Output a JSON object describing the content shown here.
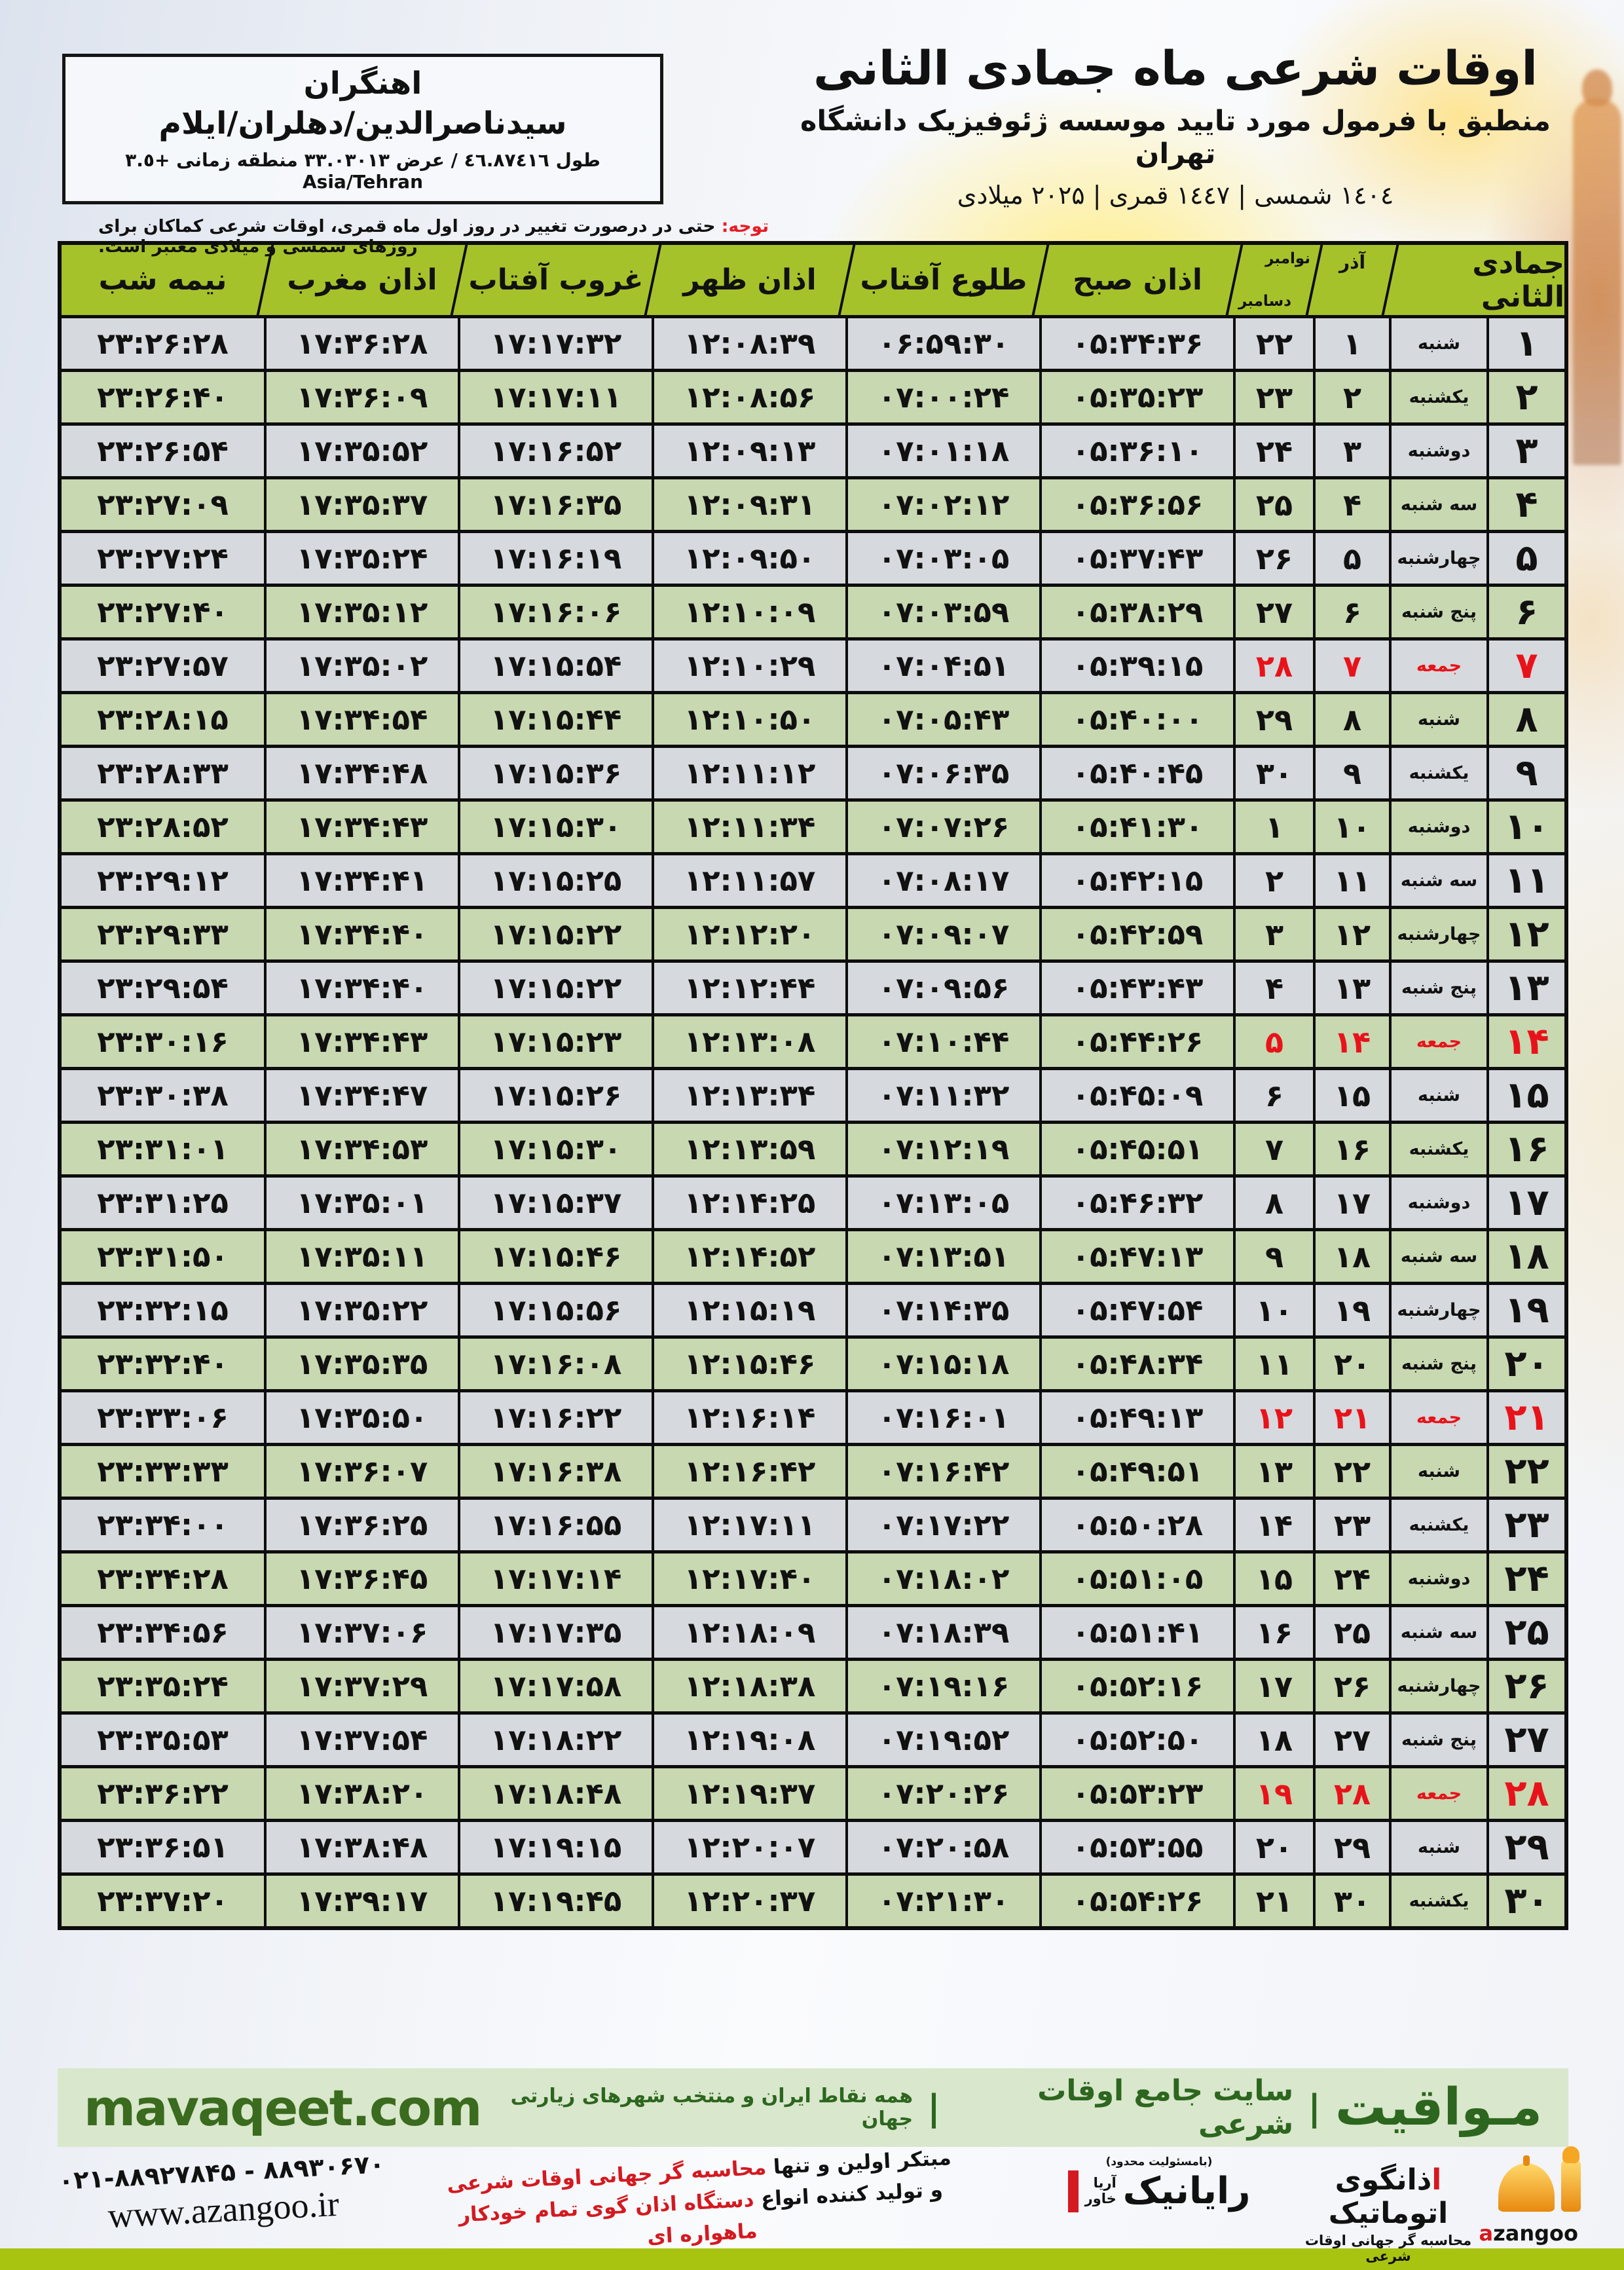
{
  "colors": {
    "accent_green": "#a6c22b",
    "row_green": "#d5e5bc",
    "friday_red": "#e8131a",
    "band_green": "#d9e7cc",
    "brand_green": "#3a6b1e",
    "lime": "#a8c411"
  },
  "location": {
    "name": "اهنگران",
    "region": "سیدناصرالدین/دهلران/ایلام",
    "coords": "طول ٤٦.٨٧٤١٦ / عرض ٣٣.٠٣٠١٣ منطقه زمانی +٣.٥ Asia/Tehran"
  },
  "title": {
    "main": "اوقات شرعی ماه جمادی الثانی",
    "sub": "منطبق با فرمول مورد تایید موسسه ژئوفیزیک دانشگاه تهران",
    "years": "١٤٠٤ شمسی | ١٤٤٧ قمری | ۲۰۲۵ میلادی"
  },
  "notice": {
    "label": "توجه:",
    "text": " حتی در درصورت تغییر در روز اول ماه قمری، اوقات شرعی کماکان برای روزهای شمسی و میلادی معتبر است."
  },
  "headers": {
    "jumada": "جمادی الثانی",
    "azar": "آذر",
    "nov": "نوامبر",
    "dec": "دسامبر",
    "fajr": "اذان صبح",
    "sunrise": "طلوع آفتاب",
    "dhuhr": "اذان ظهر",
    "sunset": "غروب آفتاب",
    "maghrib": "اذان مغرب",
    "midnight": "نیمه شب"
  },
  "rows": [
    {
      "d": 1,
      "w": "شنبه",
      "a": 1,
      "g": 22,
      "fajr": "05:34:36",
      "rise": "06:59:30",
      "noon": "12:08:39",
      "set": "17:17:32",
      "mag": "17:36:28",
      "mid": "23:26:28",
      "f": false
    },
    {
      "d": 2,
      "w": "یکشنبه",
      "a": 2,
      "g": 23,
      "fajr": "05:35:23",
      "rise": "07:00:24",
      "noon": "12:08:56",
      "set": "17:17:11",
      "mag": "17:36:09",
      "mid": "23:26:40",
      "f": false
    },
    {
      "d": 3,
      "w": "دوشنبه",
      "a": 3,
      "g": 24,
      "fajr": "05:36:10",
      "rise": "07:01:18",
      "noon": "12:09:13",
      "set": "17:16:52",
      "mag": "17:35:52",
      "mid": "23:26:54",
      "f": false
    },
    {
      "d": 4,
      "w": "سه شنبه",
      "a": 4,
      "g": 25,
      "fajr": "05:36:56",
      "rise": "07:02:12",
      "noon": "12:09:31",
      "set": "17:16:35",
      "mag": "17:35:37",
      "mid": "23:27:09",
      "f": false
    },
    {
      "d": 5,
      "w": "چهارشنبه",
      "a": 5,
      "g": 26,
      "fajr": "05:37:43",
      "rise": "07:03:05",
      "noon": "12:09:50",
      "set": "17:16:19",
      "mag": "17:35:24",
      "mid": "23:27:24",
      "f": false
    },
    {
      "d": 6,
      "w": "پنج شنبه",
      "a": 6,
      "g": 27,
      "fajr": "05:38:29",
      "rise": "07:03:59",
      "noon": "12:10:09",
      "set": "17:16:06",
      "mag": "17:35:12",
      "mid": "23:27:40",
      "f": false
    },
    {
      "d": 7,
      "w": "جمعه",
      "a": 7,
      "g": 28,
      "fajr": "05:39:15",
      "rise": "07:04:51",
      "noon": "12:10:29",
      "set": "17:15:54",
      "mag": "17:35:02",
      "mid": "23:27:57",
      "f": true
    },
    {
      "d": 8,
      "w": "شنبه",
      "a": 8,
      "g": 29,
      "fajr": "05:40:00",
      "rise": "07:05:43",
      "noon": "12:10:50",
      "set": "17:15:44",
      "mag": "17:34:54",
      "mid": "23:28:15",
      "f": false
    },
    {
      "d": 9,
      "w": "یکشنبه",
      "a": 9,
      "g": 30,
      "fajr": "05:40:45",
      "rise": "07:06:35",
      "noon": "12:11:12",
      "set": "17:15:36",
      "mag": "17:34:48",
      "mid": "23:28:33",
      "f": false
    },
    {
      "d": 10,
      "w": "دوشنبه",
      "a": 10,
      "g": 1,
      "fajr": "05:41:30",
      "rise": "07:07:26",
      "noon": "12:11:34",
      "set": "17:15:30",
      "mag": "17:34:43",
      "mid": "23:28:52",
      "f": false
    },
    {
      "d": 11,
      "w": "سه شنبه",
      "a": 11,
      "g": 2,
      "fajr": "05:42:15",
      "rise": "07:08:17",
      "noon": "12:11:57",
      "set": "17:15:25",
      "mag": "17:34:41",
      "mid": "23:29:12",
      "f": false
    },
    {
      "d": 12,
      "w": "چهارشنبه",
      "a": 12,
      "g": 3,
      "fajr": "05:42:59",
      "rise": "07:09:07",
      "noon": "12:12:20",
      "set": "17:15:22",
      "mag": "17:34:40",
      "mid": "23:29:33",
      "f": false
    },
    {
      "d": 13,
      "w": "پنج شنبه",
      "a": 13,
      "g": 4,
      "fajr": "05:43:43",
      "rise": "07:09:56",
      "noon": "12:12:44",
      "set": "17:15:22",
      "mag": "17:34:40",
      "mid": "23:29:54",
      "f": false
    },
    {
      "d": 14,
      "w": "جمعه",
      "a": 14,
      "g": 5,
      "fajr": "05:44:26",
      "rise": "07:10:44",
      "noon": "12:13:08",
      "set": "17:15:23",
      "mag": "17:34:43",
      "mid": "23:30:16",
      "f": true
    },
    {
      "d": 15,
      "w": "شنبه",
      "a": 15,
      "g": 6,
      "fajr": "05:45:09",
      "rise": "07:11:32",
      "noon": "12:13:34",
      "set": "17:15:26",
      "mag": "17:34:47",
      "mid": "23:30:38",
      "f": false
    },
    {
      "d": 16,
      "w": "یکشنبه",
      "a": 16,
      "g": 7,
      "fajr": "05:45:51",
      "rise": "07:12:19",
      "noon": "12:13:59",
      "set": "17:15:30",
      "mag": "17:34:53",
      "mid": "23:31:01",
      "f": false
    },
    {
      "d": 17,
      "w": "دوشنبه",
      "a": 17,
      "g": 8,
      "fajr": "05:46:32",
      "rise": "07:13:05",
      "noon": "12:14:25",
      "set": "17:15:37",
      "mag": "17:35:01",
      "mid": "23:31:25",
      "f": false
    },
    {
      "d": 18,
      "w": "سه شنبه",
      "a": 18,
      "g": 9,
      "fajr": "05:47:13",
      "rise": "07:13:51",
      "noon": "12:14:52",
      "set": "17:15:46",
      "mag": "17:35:11",
      "mid": "23:31:50",
      "f": false
    },
    {
      "d": 19,
      "w": "چهارشنبه",
      "a": 19,
      "g": 10,
      "fajr": "05:47:54",
      "rise": "07:14:35",
      "noon": "12:15:19",
      "set": "17:15:56",
      "mag": "17:35:22",
      "mid": "23:32:15",
      "f": false
    },
    {
      "d": 20,
      "w": "پنج شنبه",
      "a": 20,
      "g": 11,
      "fajr": "05:48:34",
      "rise": "07:15:18",
      "noon": "12:15:46",
      "set": "17:16:08",
      "mag": "17:35:35",
      "mid": "23:32:40",
      "f": false
    },
    {
      "d": 21,
      "w": "جمعه",
      "a": 21,
      "g": 12,
      "fajr": "05:49:13",
      "rise": "07:16:01",
      "noon": "12:16:14",
      "set": "17:16:22",
      "mag": "17:35:50",
      "mid": "23:33:06",
      "f": true
    },
    {
      "d": 22,
      "w": "شنبه",
      "a": 22,
      "g": 13,
      "fajr": "05:49:51",
      "rise": "07:16:42",
      "noon": "12:16:42",
      "set": "17:16:38",
      "mag": "17:36:07",
      "mid": "23:33:33",
      "f": false
    },
    {
      "d": 23,
      "w": "یکشنبه",
      "a": 23,
      "g": 14,
      "fajr": "05:50:28",
      "rise": "07:17:22",
      "noon": "12:17:11",
      "set": "17:16:55",
      "mag": "17:36:25",
      "mid": "23:34:00",
      "f": false
    },
    {
      "d": 24,
      "w": "دوشنبه",
      "a": 24,
      "g": 15,
      "fajr": "05:51:05",
      "rise": "07:18:02",
      "noon": "12:17:40",
      "set": "17:17:14",
      "mag": "17:36:45",
      "mid": "23:34:28",
      "f": false
    },
    {
      "d": 25,
      "w": "سه شنبه",
      "a": 25,
      "g": 16,
      "fajr": "05:51:41",
      "rise": "07:18:39",
      "noon": "12:18:09",
      "set": "17:17:35",
      "mag": "17:37:06",
      "mid": "23:34:56",
      "f": false
    },
    {
      "d": 26,
      "w": "چهارشنبه",
      "a": 26,
      "g": 17,
      "fajr": "05:52:16",
      "rise": "07:19:16",
      "noon": "12:18:38",
      "set": "17:17:58",
      "mag": "17:37:29",
      "mid": "23:35:24",
      "f": false
    },
    {
      "d": 27,
      "w": "پنج شنبه",
      "a": 27,
      "g": 18,
      "fajr": "05:52:50",
      "rise": "07:19:52",
      "noon": "12:19:08",
      "set": "17:18:22",
      "mag": "17:37:54",
      "mid": "23:35:53",
      "f": false
    },
    {
      "d": 28,
      "w": "جمعه",
      "a": 28,
      "g": 19,
      "fajr": "05:53:23",
      "rise": "07:20:26",
      "noon": "12:19:37",
      "set": "17:18:48",
      "mag": "17:38:20",
      "mid": "23:36:22",
      "f": true
    },
    {
      "d": 29,
      "w": "شنبه",
      "a": 29,
      "g": 20,
      "fajr": "05:53:55",
      "rise": "07:20:58",
      "noon": "12:20:07",
      "set": "17:19:15",
      "mag": "17:38:48",
      "mid": "23:36:51",
      "f": false
    },
    {
      "d": 30,
      "w": "یکشنبه",
      "a": 30,
      "g": 21,
      "fajr": "05:54:26",
      "rise": "07:21:30",
      "noon": "12:20:37",
      "set": "17:19:45",
      "mag": "17:39:17",
      "mid": "23:37:20",
      "f": false
    }
  ],
  "band": {
    "brand": "مـواقیت",
    "sep": "|",
    "tagline1": "سایت جامع اوقات شرعی",
    "tagline2": "همه نقاط ایران و منتخب شهرهای زیارتی جهان",
    "site": "mavaqeet.com"
  },
  "bottom": {
    "phone": "۰۲۱-۸۸۹۲۷۸۴۵ - ۸۸۹۳۰۶۷۰",
    "url": "www.azangoo.ir",
    "line1_black": "مبتکر اولین و تنها ",
    "line1_red": "محاسبه گر جهانی اوقات شرعی",
    "line2_black": "و تولید کننده انواع ",
    "line2_red": "دستگاه اذان گوی تمام خودکار ماهواره ای",
    "rayanik_note": "(بامسئولیت محدود)",
    "rayanik_name": "رایانیک",
    "rayanik_sub1": "آریا",
    "rayanik_sub2": "خاور",
    "azangoo_title": "اذانگوی اتوماتیک",
    "azangoo_sub": "محاسبه گر جهانی اوقات شرعی",
    "azangoo_a": "a",
    "azangoo_rest": "zangoo"
  }
}
